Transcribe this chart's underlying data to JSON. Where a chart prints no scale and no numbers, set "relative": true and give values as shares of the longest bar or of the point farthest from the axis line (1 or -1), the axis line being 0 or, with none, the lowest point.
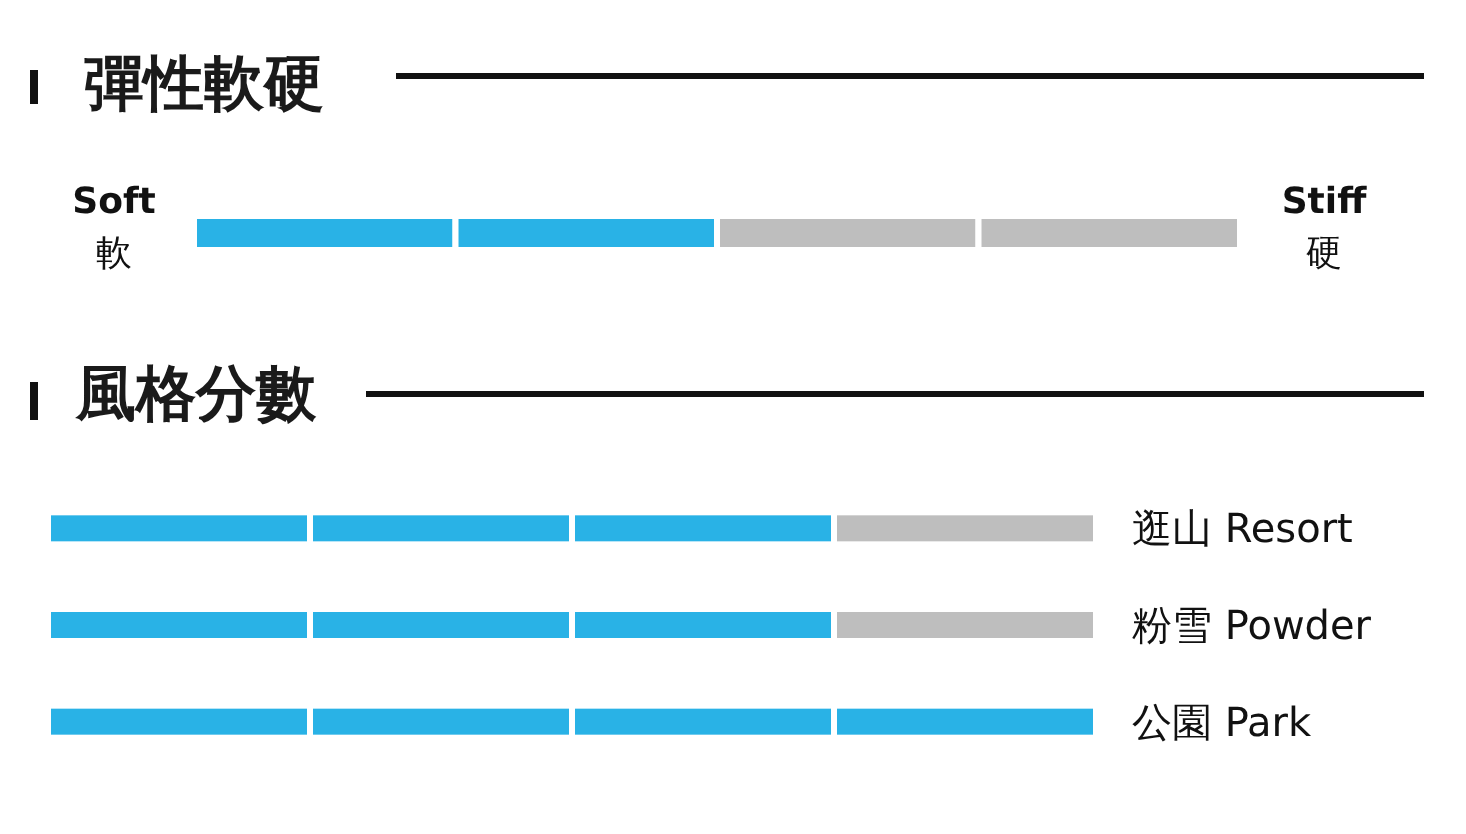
{
  "chart_data": [
    {
      "type": "bar",
      "orientation": "horizontal",
      "stacked": true,
      "relative": true,
      "title": "彈性軟硬",
      "categories": [
        null
      ],
      "series": [
        {
          "colors": [
            "#29b2e6"
          ],
          "values": [
            0.25
          ]
        },
        {
          "colors": [
            "#29b2e6"
          ],
          "values": [
            0.25
          ]
        },
        {
          "colors": [
            "#bebebe"
          ],
          "values": [
            0.25
          ]
        },
        {
          "colors": [
            "#bebebe"
          ],
          "values": [
            0.25
          ]
        }
      ],
      "annotations": [
        "Soft\n軟",
        "Stiff\n硬"
      ]
    },
    {
      "type": "bar",
      "orientation": "horizontal",
      "stacked": true,
      "relative": true,
      "title": "風格分數",
      "categories": [
        "逛山 Resort",
        "粉雪 Powder",
        "公園 Park"
      ],
      "series": [
        {
          "colors": [
            "#29b2e6",
            "#29b2e6",
            "#29b2e6"
          ],
          "values": [
            0.25,
            0.25,
            0.25
          ]
        },
        {
          "colors": [
            "#29b2e6",
            "#29b2e6",
            "#29b2e6"
          ],
          "values": [
            0.25,
            0.25,
            0.25
          ]
        },
        {
          "colors": [
            "#29b2e6",
            "#29b2e6",
            "#29b2e6"
          ],
          "values": [
            0.25,
            0.25,
            0.25
          ]
        },
        {
          "colors": [
            "#bebebe",
            "#bebebe",
            "#29b2e6"
          ],
          "values": [
            0.25,
            0.25,
            0.25
          ]
        }
      ]
    }
  ]
}
